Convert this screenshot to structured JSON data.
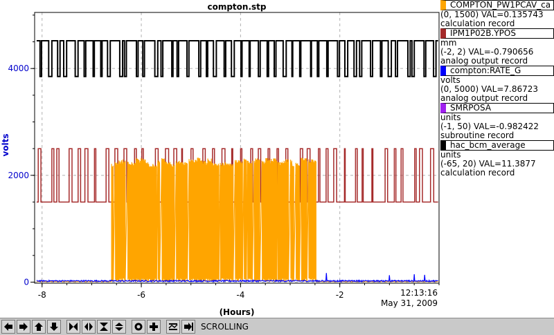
{
  "chart_data": {
    "type": "line",
    "title": "compton.stp",
    "xlabel": "(Hours)",
    "ylabel": "volts",
    "xlim": [
      -8.15,
      0
    ],
    "ylim": [
      -20,
      5050
    ],
    "xticks": [
      -8,
      -6,
      -4,
      -2
    ],
    "yticks": [
      0,
      2000,
      4000
    ],
    "time_label": "12:13:16",
    "date_label": "May 31, 2009",
    "grid": true,
    "series": [
      {
        "name": "COMPTON_PW1PCAV_ca",
        "color": "#ffa500",
        "description_lines": [
          "(0, 1500) VAL=0.135743",
          "calculation record"
        ],
        "baseline": 10,
        "high": 2330,
        "active_range": [
          -6.6,
          -2.47
        ]
      },
      {
        "name": "IPM1P02B.YPOS",
        "color": "#a52a2a",
        "description_lines": [
          "mm",
          "(-2, 2) VAL=-0.790656",
          "analog output record"
        ],
        "baseline": 1500,
        "high": 2500
      },
      {
        "name": "compton:RATE_G",
        "color": "#0000ff",
        "description_lines": [
          "volts",
          "(0, 5000) VAL=7.86723",
          "analog output record"
        ],
        "baseline": 10
      },
      {
        "name": "SMRPOSA",
        "color": "#a020f0",
        "description_lines": [
          "units",
          "(-1, 50) VAL=-0.982422",
          "subroutine record"
        ]
      },
      {
        "name": "hac_bcm_average",
        "color": "#000000",
        "description_lines": [
          "units",
          "(-65, 20) VAL=11.3877",
          "calculation record"
        ],
        "baseline": 4520,
        "low": 3850
      }
    ]
  },
  "toolbar": {
    "status": "SCROLLING",
    "buttons": [
      "left-arrow",
      "right-arrow",
      "up-arrow",
      "down-arrow",
      "zoom-in-x",
      "zoom-out-x",
      "zoom-in-y",
      "zoom-out-y",
      "auto-scale",
      "add",
      "hold",
      "jump"
    ]
  }
}
